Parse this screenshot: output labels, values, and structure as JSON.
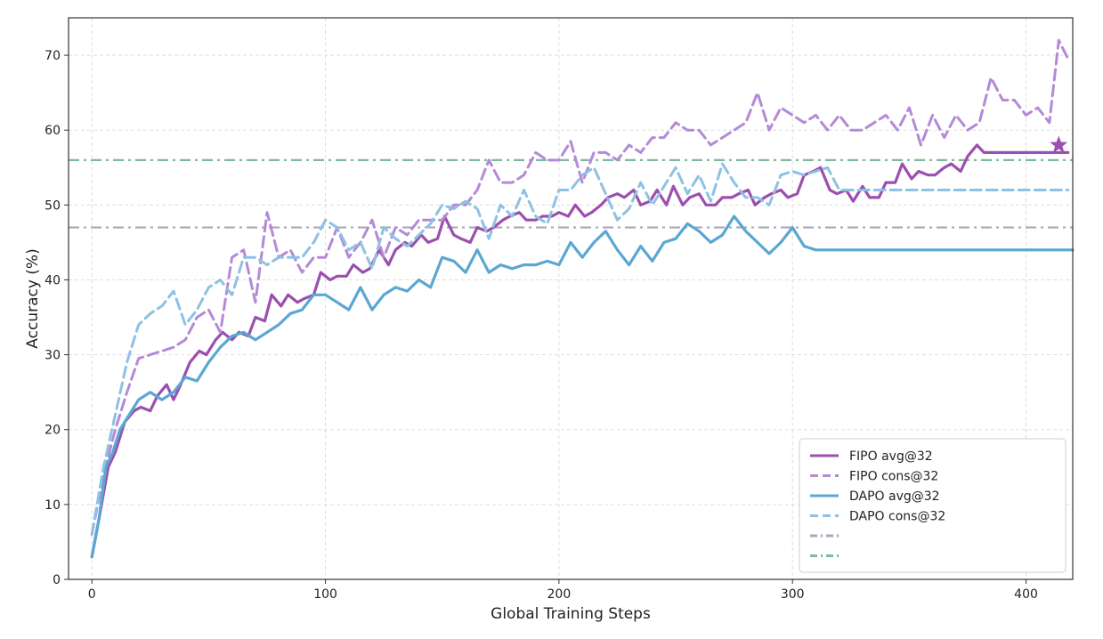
{
  "chart_data": {
    "type": "line",
    "title": "",
    "xlabel": "Global Training Steps",
    "ylabel": "Accuracy (%)",
    "xlim": [
      -10,
      420
    ],
    "ylim": [
      0,
      75
    ],
    "xticks": [
      0,
      100,
      200,
      300,
      400
    ],
    "yticks": [
      0,
      10,
      20,
      30,
      40,
      50,
      60,
      70
    ],
    "grid": true,
    "legend_position": "bottom-right",
    "series": [
      {
        "name": "FIPO avg@32",
        "color": "#9b4fae",
        "style": "solid",
        "x": [
          0,
          3,
          7,
          10,
          14,
          18,
          21,
          25,
          28,
          32,
          35,
          38,
          42,
          46,
          49,
          53,
          56,
          60,
          63,
          67,
          70,
          74,
          77,
          81,
          84,
          88,
          91,
          95,
          98,
          102,
          105,
          109,
          112,
          116,
          119,
          123,
          127,
          130,
          134,
          137,
          141,
          144,
          148,
          151,
          155,
          158,
          162,
          165,
          169,
          172,
          176,
          179,
          183,
          186,
          190,
          193,
          197,
          200,
          204,
          207,
          211,
          214,
          218,
          221,
          225,
          228,
          232,
          235,
          239,
          242,
          246,
          249,
          253,
          256,
          260,
          263,
          267,
          270,
          274,
          277,
          281,
          284,
          288,
          291,
          295,
          298,
          302,
          305,
          309,
          312,
          316,
          319,
          323,
          326,
          330,
          333,
          337,
          340,
          344,
          347,
          351,
          354,
          358,
          361,
          365,
          368,
          372,
          375,
          379,
          382,
          386,
          389,
          393,
          396,
          400,
          403,
          407,
          410,
          414,
          418
        ],
        "values": [
          3,
          8,
          15,
          17,
          21,
          22.5,
          23,
          22.5,
          24.5,
          26,
          24,
          26,
          29,
          30.5,
          30,
          32,
          33,
          32,
          33,
          32.5,
          35,
          34.5,
          38,
          36.5,
          38,
          37,
          37.5,
          38,
          41,
          40,
          40.5,
          40.5,
          42,
          41,
          41.5,
          44,
          42,
          44,
          45,
          44.5,
          46,
          45,
          45.5,
          48.5,
          46,
          45.5,
          45,
          47,
          46.5,
          47,
          48,
          48.5,
          49,
          48,
          48,
          48.5,
          48.5,
          49,
          48.5,
          50,
          48.5,
          49,
          50,
          51,
          51.5,
          51,
          52,
          50,
          50.5,
          52,
          50,
          52.5,
          50,
          51,
          51.5,
          50,
          50,
          51,
          51,
          51.5,
          52,
          50,
          51,
          51.5,
          52,
          51,
          51.5,
          54,
          54.5,
          55,
          52,
          51.5,
          52,
          50.5,
          52.5,
          51,
          51,
          53,
          53,
          55.5,
          53.5,
          54.5,
          54,
          54,
          55,
          55.5,
          54.5,
          56.5,
          58,
          57,
          57,
          57,
          57,
          57,
          57,
          57,
          57,
          57,
          57,
          57
        ]
      },
      {
        "name": "FIPO cons@32",
        "color": "#b48ad8",
        "style": "dashed",
        "x": [
          0,
          5,
          10,
          15,
          20,
          25,
          30,
          35,
          40,
          45,
          50,
          55,
          60,
          65,
          70,
          75,
          80,
          85,
          90,
          95,
          100,
          105,
          110,
          115,
          120,
          125,
          130,
          135,
          140,
          145,
          150,
          155,
          160,
          165,
          170,
          175,
          180,
          185,
          190,
          195,
          200,
          205,
          210,
          215,
          220,
          225,
          230,
          235,
          240,
          245,
          250,
          255,
          260,
          265,
          270,
          275,
          280,
          285,
          290,
          295,
          300,
          305,
          310,
          315,
          320,
          325,
          330,
          335,
          340,
          345,
          350,
          355,
          360,
          365,
          370,
          375,
          380,
          385,
          390,
          395,
          400,
          405,
          410,
          414,
          418
        ],
        "values": [
          6,
          14,
          20,
          25,
          29.5,
          30,
          30.5,
          31,
          32,
          35,
          36,
          33,
          43,
          44,
          37,
          49,
          43,
          44,
          41,
          43,
          43,
          47,
          43,
          45,
          48,
          43,
          47,
          46,
          48,
          48,
          48,
          50,
          50,
          52,
          56,
          53,
          53,
          54,
          57,
          56,
          56,
          58.5,
          53,
          57,
          57,
          56,
          58,
          57,
          59,
          59,
          61,
          60,
          60,
          58,
          59,
          60,
          61,
          65,
          60,
          63,
          62,
          61,
          62,
          60,
          62,
          60,
          60,
          61,
          62,
          60,
          63,
          58,
          62,
          59,
          62,
          60,
          61,
          67,
          64,
          64,
          62,
          63,
          61,
          72,
          69.5
        ]
      },
      {
        "name": "DAPO avg@32",
        "color": "#5ba7d2",
        "style": "solid",
        "x": [
          0,
          3,
          6,
          9,
          12,
          16,
          20,
          25,
          30,
          35,
          40,
          45,
          50,
          55,
          60,
          65,
          70,
          75,
          80,
          85,
          90,
          95,
          100,
          105,
          110,
          115,
          120,
          125,
          130,
          135,
          140,
          145,
          150,
          155,
          160,
          165,
          170,
          175,
          180,
          185,
          190,
          195,
          200,
          205,
          210,
          215,
          220,
          225,
          230,
          235,
          240,
          245,
          250,
          255,
          260,
          265,
          270,
          275,
          280,
          285,
          290,
          295,
          300,
          305,
          310,
          315,
          320,
          325,
          330,
          335,
          340,
          345,
          350,
          355,
          360,
          365,
          370,
          375,
          380,
          385,
          390,
          395,
          400,
          405,
          410,
          415,
          420
        ],
        "values": [
          3,
          8,
          15,
          17,
          20,
          22,
          24,
          25,
          24,
          25,
          27,
          26.5,
          29,
          31,
          32.5,
          33,
          32,
          33,
          34,
          35.5,
          36,
          38,
          38,
          37,
          36,
          39,
          36,
          38,
          39,
          38.5,
          40,
          39,
          43,
          42.5,
          41,
          44,
          41,
          42,
          41.5,
          42,
          42,
          42.5,
          42,
          45,
          43,
          45,
          46.5,
          44,
          42,
          44.5,
          42.5,
          45,
          45.5,
          47.5,
          46.5,
          45,
          46,
          48.5,
          46.5,
          45,
          43.5,
          45,
          47,
          44.5,
          44,
          44,
          44,
          44,
          44,
          44,
          44,
          44,
          44,
          44,
          44,
          44,
          44,
          44,
          44,
          44,
          44,
          44,
          44,
          44,
          44,
          44,
          44
        ]
      },
      {
        "name": "DAPO cons@32",
        "color": "#8ec1e4",
        "style": "dashed",
        "x": [
          0,
          5,
          10,
          15,
          20,
          25,
          30,
          35,
          40,
          45,
          50,
          55,
          60,
          65,
          70,
          75,
          80,
          85,
          90,
          95,
          100,
          105,
          110,
          115,
          120,
          125,
          130,
          135,
          140,
          145,
          150,
          155,
          160,
          165,
          170,
          175,
          180,
          185,
          190,
          195,
          200,
          205,
          210,
          215,
          220,
          225,
          230,
          235,
          240,
          245,
          250,
          255,
          260,
          265,
          270,
          275,
          280,
          285,
          290,
          295,
          300,
          305,
          310,
          315,
          320,
          325,
          330,
          335,
          340,
          345,
          350,
          355,
          360,
          365,
          370,
          375,
          380,
          385,
          390,
          395,
          400,
          405,
          410,
          414,
          418
        ],
        "values": [
          6,
          15,
          22,
          29,
          34,
          35.5,
          36.5,
          38.5,
          34,
          36,
          39,
          40,
          38,
          43,
          43,
          42,
          43,
          43,
          43,
          45,
          48,
          47,
          44,
          45,
          41.5,
          47,
          45.5,
          44.5,
          46,
          47.5,
          50,
          49.5,
          50.5,
          49.5,
          45.5,
          50,
          48.5,
          52,
          48.5,
          47.5,
          52,
          52,
          54,
          55,
          51.5,
          48,
          49.5,
          53,
          50,
          52.5,
          55,
          51.5,
          54,
          50.5,
          55.5,
          53,
          51,
          51,
          50,
          54,
          54.5,
          54,
          54.5,
          55,
          52,
          52,
          52,
          52,
          52,
          52,
          52,
          52,
          52,
          52,
          52,
          52,
          52,
          52,
          52,
          52,
          52,
          52,
          52,
          52,
          52
        ]
      }
    ],
    "reference_lines": [
      {
        "y": 56,
        "color": "#7fb8a0",
        "style": "dashdot"
      },
      {
        "y": 47,
        "color": "#aaa5b8",
        "style": "dashdot"
      }
    ],
    "star_marker": {
      "x": 414,
      "y": 58,
      "color": "#9b4fae"
    },
    "legend": [
      {
        "label": "FIPO avg@32",
        "color": "#9b4fae",
        "style": "solid"
      },
      {
        "label": "FIPO cons@32",
        "color": "#b48ad8",
        "style": "dashed"
      },
      {
        "label": "DAPO avg@32",
        "color": "#5ba7d2",
        "style": "solid"
      },
      {
        "label": "DAPO cons@32",
        "color": "#8ec1e4",
        "style": "dashed"
      },
      {
        "label": "",
        "color": "#aaa5b8",
        "style": "dashdot"
      },
      {
        "label": "",
        "color": "#7fb8a0",
        "style": "dashdot"
      }
    ]
  }
}
